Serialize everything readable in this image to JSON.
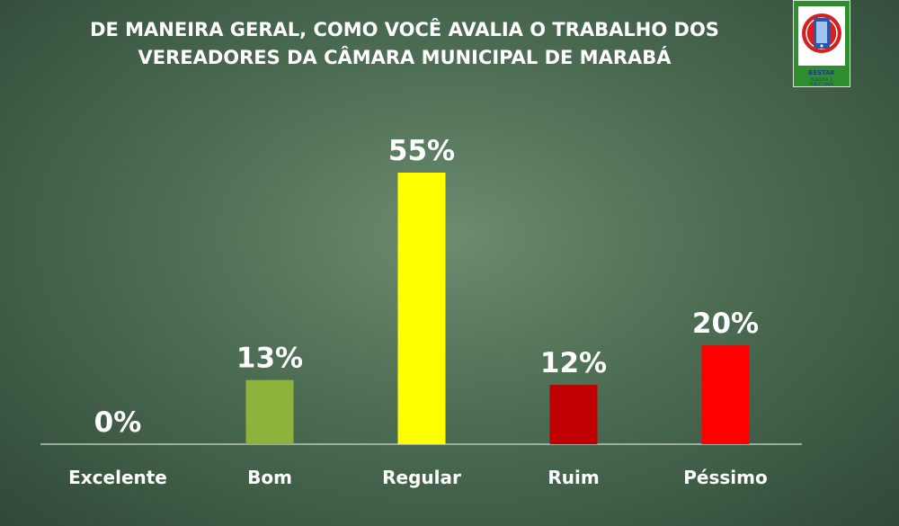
{
  "logo": {
    "name": "BESTAK",
    "subtitle": "PESQUISA E PUBLICIDADE",
    "colors": {
      "background": "#2f8f2f",
      "circle": "#d42020",
      "device": "#2a58a8"
    }
  },
  "chart_data": {
    "type": "bar",
    "title_lines": [
      "DE MANEIRA GERAL, COMO VOCÊ AVALIA O TRABALHO DOS",
      "VEREADORES DA CÂMARA MUNICIPAL DE MARABÁ"
    ],
    "categories": [
      "Excelente",
      "Bom",
      "Regular",
      "Ruim",
      "Péssimo"
    ],
    "values": [
      0,
      13,
      55,
      12,
      20
    ],
    "value_labels": [
      "0%",
      "13%",
      "55%",
      "12%",
      "20%"
    ],
    "colors": [
      "#8db33a",
      "#8db33a",
      "#ffff00",
      "#c00000",
      "#ff0000"
    ],
    "unit": "%",
    "ylim": [
      0,
      55
    ],
    "grid": false,
    "legend": "none"
  }
}
